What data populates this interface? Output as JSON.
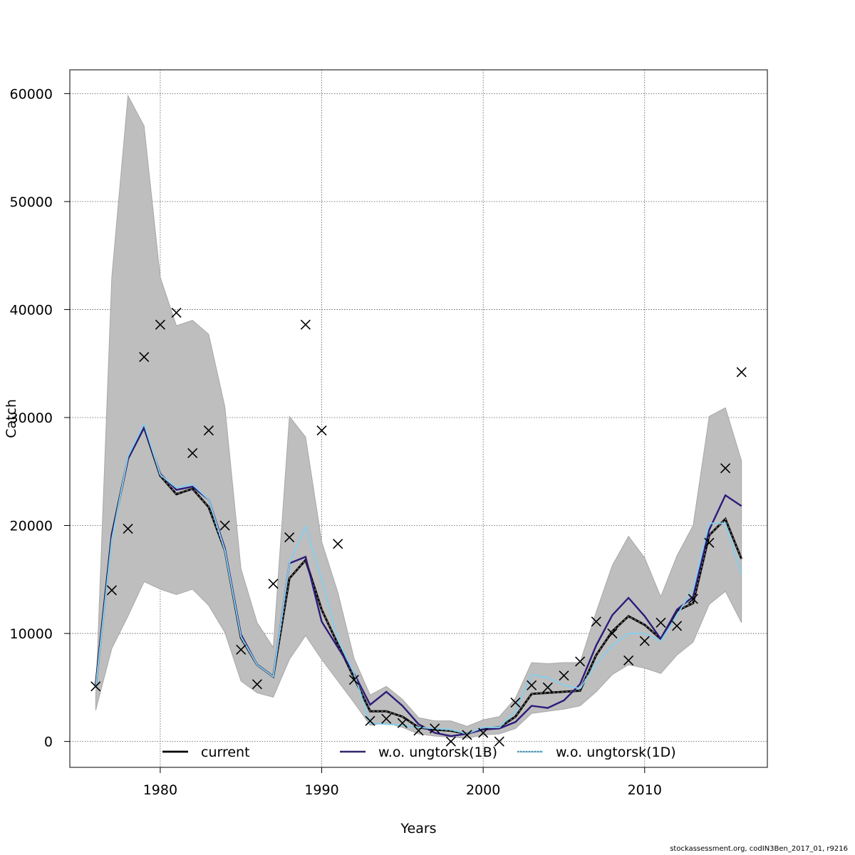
{
  "chart_data": {
    "type": "line",
    "title": "",
    "xlabel": "Years",
    "ylabel": "Catch",
    "xlim": [
      1974.4,
      2017.6
    ],
    "ylim": [
      -2400,
      62200
    ],
    "x_ticks": [
      1980,
      1990,
      2000,
      2010
    ],
    "y_ticks": [
      0,
      10000,
      20000,
      30000,
      40000,
      50000,
      60000
    ],
    "grid": true,
    "legend_position": "bottom",
    "years": [
      1976,
      1977,
      1978,
      1979,
      1980,
      1981,
      1982,
      1983,
      1984,
      1985,
      1986,
      1987,
      1988,
      1989,
      1990,
      1991,
      1992,
      1993,
      1994,
      1995,
      1996,
      1997,
      1998,
      1999,
      2000,
      2001,
      2002,
      2003,
      2004,
      2005,
      2006,
      2007,
      2008,
      2009,
      2010,
      2011,
      2012,
      2013,
      2014,
      2015,
      2016
    ],
    "confidence_band": {
      "color": "#bebebe",
      "upper": [
        4000,
        43000,
        59800,
        57000,
        43000,
        38500,
        39000,
        37700,
        31000,
        16000,
        11000,
        8700,
        30100,
        28200,
        18500,
        13800,
        7700,
        4300,
        5100,
        3900,
        2200,
        1900,
        1900,
        1400,
        2000,
        2300,
        4000,
        7300,
        7200,
        7300,
        7300,
        12000,
        16300,
        19000,
        17000,
        13400,
        17200,
        20000,
        30100,
        30900,
        26000
      ],
      "lower": [
        2900,
        8600,
        11600,
        14800,
        14100,
        13600,
        14100,
        12600,
        10100,
        5600,
        4500,
        4100,
        7600,
        9800,
        7600,
        5600,
        3600,
        1500,
        1700,
        1300,
        700,
        500,
        400,
        300,
        600,
        700,
        1200,
        2600,
        2800,
        3000,
        3300,
        4600,
        6200,
        7100,
        6800,
        6300,
        8000,
        9200,
        12700,
        13900,
        11000
      ]
    },
    "series": [
      {
        "name": "current",
        "color": "#000000",
        "values": [
          5200,
          19100,
          26200,
          29100,
          24600,
          22900,
          23400,
          21700,
          17700,
          9600,
          7100,
          6000,
          15100,
          16800,
          12200,
          9000,
          5900,
          2800,
          2800,
          2300,
          1300,
          1100,
          1000,
          700,
          1200,
          1300,
          2300,
          4400,
          4500,
          4600,
          4700,
          8000,
          10200,
          11600,
          10800,
          9500,
          12100,
          12800,
          19100,
          20600,
          16900
        ]
      },
      {
        "name": "w.o. ungtorsk(1B)",
        "color": "#2e1a7a",
        "values": [
          5100,
          19000,
          26200,
          29100,
          24800,
          23300,
          23600,
          22400,
          17900,
          9900,
          7100,
          6000,
          16500,
          17100,
          11100,
          8700,
          6300,
          3400,
          4600,
          3300,
          1600,
          800,
          500,
          700,
          1100,
          1200,
          1800,
          3300,
          3100,
          3800,
          5300,
          8900,
          11700,
          13300,
          11600,
          9500,
          12200,
          13400,
          19600,
          22800,
          21800
        ]
      },
      {
        "name": "w.o. ungtorsk(1D)",
        "color": "#87ceeb",
        "values": [
          5000,
          18700,
          26400,
          29400,
          24700,
          23500,
          23800,
          22400,
          17700,
          9700,
          7100,
          6000,
          16500,
          19900,
          15000,
          9500,
          6300,
          1700,
          1600,
          1500,
          1300,
          1200,
          1100,
          700,
          1300,
          1300,
          2800,
          6200,
          5900,
          5200,
          4900,
          7200,
          8900,
          10000,
          10000,
          9300,
          11700,
          14100,
          20200,
          20200,
          15500
        ]
      }
    ],
    "observations": {
      "marker": "x",
      "values": [
        5100,
        14000,
        19700,
        35600,
        38600,
        39700,
        26700,
        28800,
        20000,
        8500,
        5300,
        14600,
        18900,
        38600,
        28800,
        18300,
        5700,
        1900,
        2100,
        1700,
        1000,
        1200,
        0,
        600,
        800,
        0,
        3600,
        5200,
        5000,
        6100,
        7400,
        11100,
        10000,
        7500,
        9300,
        11000,
        10700,
        13200,
        18400,
        25300,
        34200
      ]
    }
  },
  "legend": {
    "items": [
      {
        "label": "current",
        "color": "#000000",
        "style": "solid"
      },
      {
        "label": "w.o. ungtorsk(1B)",
        "color": "#2e1a7a",
        "style": "solid"
      },
      {
        "label": "w.o. ungtorsk(1D)",
        "color": "#87ceeb",
        "style": "solid"
      }
    ]
  },
  "footer": "stockassessment.org, codIN3Ben_2017_01, r9216"
}
